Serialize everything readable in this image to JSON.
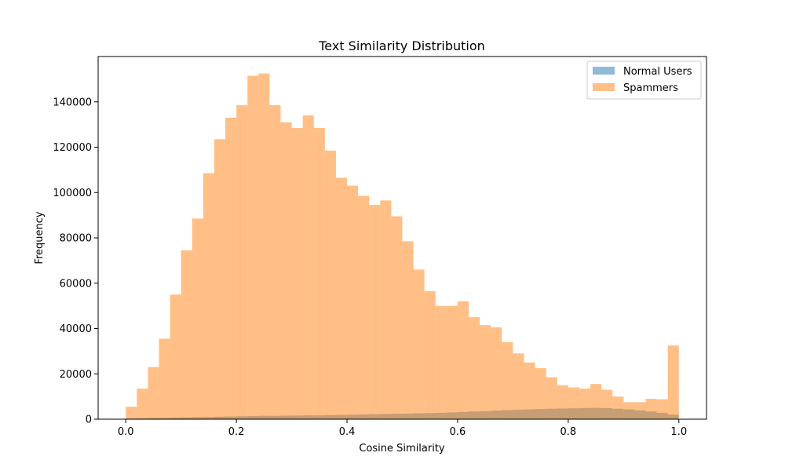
{
  "chart_data": {
    "type": "bar",
    "title": "Text Similarity Distribution",
    "xlabel": "Cosine Similarity",
    "ylabel": "Frequency",
    "xlim": [
      -0.05,
      1.05
    ],
    "ylim": [
      0,
      160000
    ],
    "x_ticks": [
      "0.0",
      "0.2",
      "0.4",
      "0.6",
      "0.8",
      "1.0"
    ],
    "x_tick_values": [
      0.0,
      0.2,
      0.4,
      0.6,
      0.8,
      1.0
    ],
    "y_ticks": [
      "0",
      "20000",
      "40000",
      "60000",
      "80000",
      "100000",
      "120000",
      "140000"
    ],
    "y_tick_values": [
      0,
      20000,
      40000,
      60000,
      80000,
      100000,
      120000,
      140000
    ],
    "bin_start": 0.0,
    "bin_width": 0.02,
    "legend": "top-right",
    "series": [
      {
        "name": "Normal Users",
        "color": "#1f77b4",
        "alpha": 0.5,
        "values": [
          300,
          400,
          500,
          600,
          700,
          800,
          900,
          1000,
          1100,
          1200,
          1300,
          1400,
          1500,
          1500,
          1600,
          1600,
          1700,
          1700,
          1800,
          1900,
          2000,
          2100,
          2200,
          2300,
          2400,
          2500,
          2600,
          2700,
          2800,
          3000,
          3200,
          3400,
          3600,
          3800,
          4000,
          4200,
          4300,
          4500,
          4600,
          4700,
          4800,
          4900,
          5000,
          4900,
          4600,
          4300,
          3900,
          3400,
          2800,
          2000
        ]
      },
      {
        "name": "Spammers",
        "color": "#ff7f0e",
        "alpha": 0.5,
        "values": [
          5500,
          13500,
          23000,
          35500,
          55000,
          74500,
          88500,
          108500,
          123500,
          133000,
          138500,
          151500,
          152500,
          138500,
          131000,
          128500,
          134000,
          128500,
          118500,
          106500,
          103000,
          98500,
          94500,
          96500,
          89500,
          78500,
          66000,
          56500,
          50000,
          50000,
          52000,
          45000,
          41500,
          40500,
          34000,
          29000,
          25000,
          22500,
          18500,
          15000,
          14000,
          13500,
          15500,
          13000,
          10000,
          7500,
          7500,
          9000,
          8800,
          32500
        ]
      }
    ]
  }
}
